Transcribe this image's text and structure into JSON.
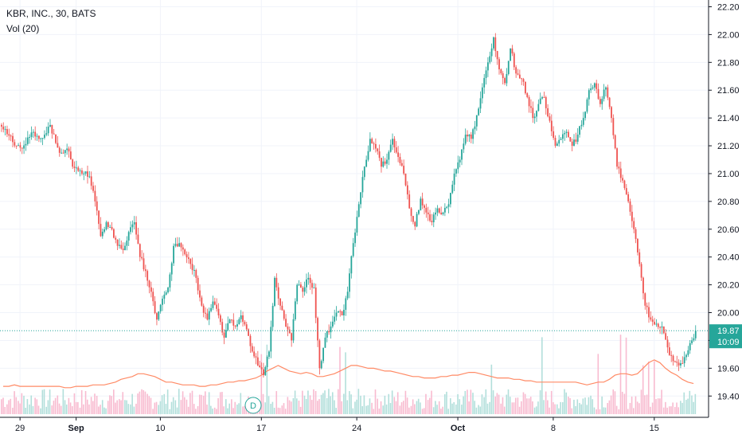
{
  "header": {
    "symbol_line": "KBR, INC., 30, BATS",
    "volume_line": "Vol (20)"
  },
  "price_badge": {
    "price": "19.87",
    "countdown": "10:09"
  },
  "event_marker": {
    "label": "D"
  },
  "colors": {
    "up": "#26a69a",
    "down": "#ef5350",
    "up_volume": "#b2dfdb",
    "down_volume": "#f8bbd0",
    "volume_ma": "#ff8a65",
    "grid": "#f0f3fa",
    "axis": "#131722",
    "price_line": "#26a69a"
  },
  "chart_data": {
    "type": "candlestick",
    "title": "KBR, INC., 30, BATS",
    "interval": "30",
    "ylim": [
      19.35,
      22.22
    ],
    "y_ticks": [
      "22.20",
      "22.00",
      "21.80",
      "21.60",
      "21.40",
      "21.20",
      "21.00",
      "20.80",
      "20.60",
      "20.40",
      "20.20",
      "20.00",
      "19.80",
      "19.60",
      "19.40"
    ],
    "x_ticks": [
      {
        "label": "29",
        "bar": 3,
        "bold": false
      },
      {
        "label": "Sep",
        "bar": 13,
        "bold": true
      },
      {
        "label": "10",
        "bar": 28,
        "bold": false
      },
      {
        "label": "17",
        "bar": 46,
        "bold": false
      },
      {
        "label": "24",
        "bar": 63,
        "bold": false
      },
      {
        "label": "Oct",
        "bar": 81,
        "bold": true
      },
      {
        "label": "8",
        "bar": 98,
        "bold": false
      },
      {
        "label": "15",
        "bar": 116,
        "bold": false
      }
    ],
    "last_price": 19.87,
    "closes": [
      21.32,
      21.27,
      21.2,
      21.18,
      21.26,
      21.3,
      21.25,
      21.28,
      21.35,
      21.22,
      21.15,
      21.18,
      21.05,
      21.02,
      21.0,
      20.98,
      20.8,
      20.55,
      20.65,
      20.6,
      20.48,
      20.45,
      20.58,
      20.65,
      20.4,
      20.3,
      20.15,
      19.95,
      20.1,
      20.18,
      20.48,
      20.5,
      20.42,
      20.35,
      20.25,
      20.05,
      19.95,
      20.08,
      19.98,
      19.82,
      19.95,
      19.9,
      19.98,
      19.88,
      19.72,
      19.62,
      19.55,
      19.72,
      20.25,
      20.05,
      19.9,
      19.8,
      20.2,
      20.15,
      20.25,
      20.18,
      19.6,
      19.82,
      19.9,
      20.0,
      19.98,
      20.15,
      20.5,
      20.78,
      21.05,
      21.25,
      21.18,
      21.05,
      21.1,
      21.25,
      21.12,
      21.0,
      20.75,
      20.62,
      20.82,
      20.72,
      20.65,
      20.75,
      20.72,
      20.78,
      21.0,
      21.1,
      21.28,
      21.25,
      21.42,
      21.62,
      21.8,
      21.98,
      21.75,
      21.65,
      21.9,
      21.72,
      21.68,
      21.55,
      21.4,
      21.5,
      21.55,
      21.38,
      21.2,
      21.25,
      21.3,
      21.2,
      21.28,
      21.4,
      21.6,
      21.65,
      21.5,
      21.62,
      21.4,
      21.05,
      20.95,
      20.8,
      20.6,
      20.35,
      20.05,
      19.95,
      19.92,
      19.9,
      19.75,
      19.65,
      19.62,
      19.68,
      19.78,
      19.87
    ],
    "volume_ma": [
      19.47,
      19.47,
      19.48,
      19.47,
      19.47,
      19.47,
      19.47,
      19.47,
      19.47,
      19.47,
      19.47,
      19.46,
      19.46,
      19.47,
      19.47,
      19.47,
      19.48,
      19.48,
      19.48,
      19.49,
      19.5,
      19.52,
      19.53,
      19.54,
      19.56,
      19.56,
      19.55,
      19.54,
      19.52,
      19.5,
      19.5,
      19.49,
      19.48,
      19.48,
      19.48,
      19.47,
      19.47,
      19.48,
      19.48,
      19.49,
      19.5,
      19.5,
      19.51,
      19.51,
      19.52,
      19.53,
      19.55,
      19.58,
      19.6,
      19.62,
      19.6,
      19.58,
      19.57,
      19.56,
      19.57,
      19.56,
      19.54,
      19.54,
      19.55,
      19.56,
      19.58,
      19.6,
      19.62,
      19.62,
      19.61,
      19.6,
      19.6,
      19.59,
      19.58,
      19.58,
      19.57,
      19.56,
      19.55,
      19.54,
      19.54,
      19.53,
      19.53,
      19.53,
      19.54,
      19.54,
      19.55,
      19.55,
      19.56,
      19.57,
      19.57,
      19.56,
      19.55,
      19.54,
      19.53,
      19.53,
      19.53,
      19.52,
      19.52,
      19.51,
      19.51,
      19.5,
      19.5,
      19.5,
      19.5,
      19.5,
      19.5,
      19.5,
      19.5,
      19.49,
      19.48,
      19.49,
      19.5,
      19.5,
      19.52,
      19.55,
      19.56,
      19.56,
      19.55,
      19.56,
      19.6,
      19.64,
      19.66,
      19.64,
      19.6,
      19.57,
      19.55,
      19.52,
      19.5,
      19.49
    ],
    "volume_peak_bars": [
      46,
      47,
      60,
      61,
      87,
      96,
      106,
      110,
      111,
      114,
      115,
      116
    ]
  }
}
